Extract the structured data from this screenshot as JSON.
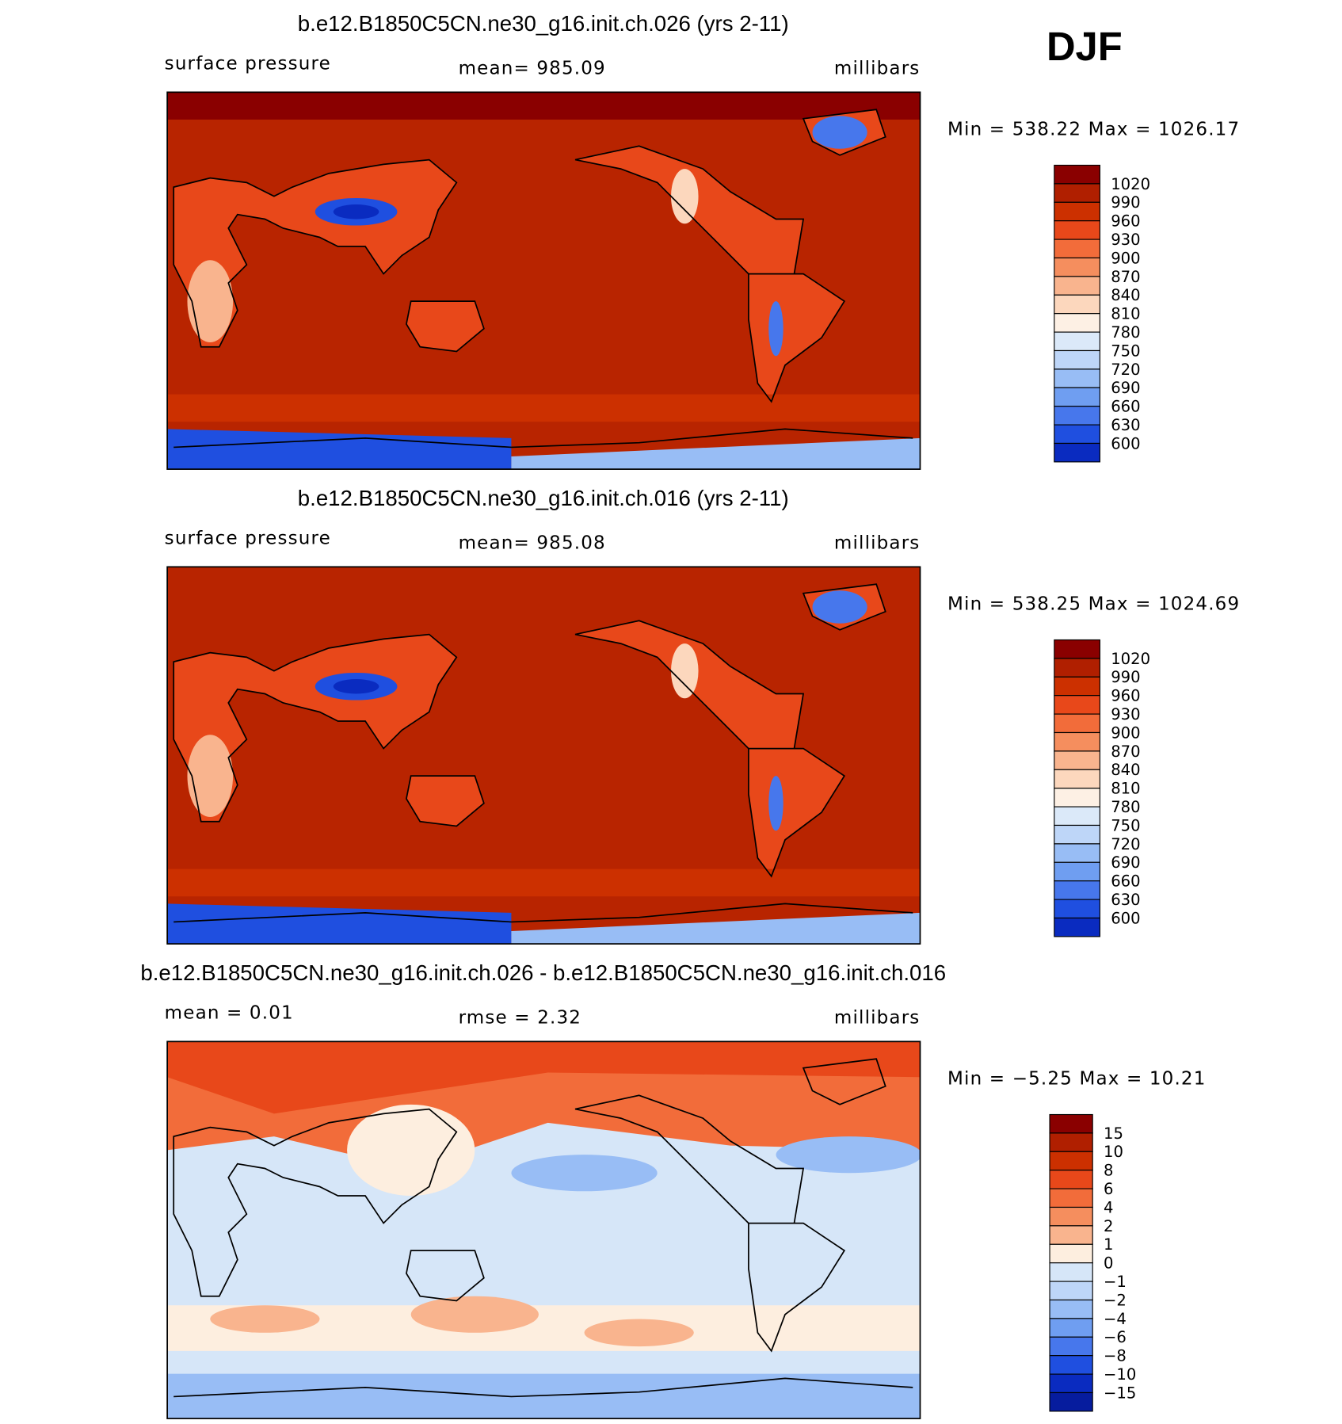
{
  "season": "DJF",
  "panels": [
    {
      "title": "b.e12.B1850C5CN.ne30_g16.init.ch.026 (yrs 2-11)",
      "left_label": "surface pressure",
      "center_label": "mean=  985.09",
      "right_label": "millibars",
      "min_max": "Min = 538.22 Max = 1026.17",
      "colorbar": {
        "labels": [
          "1020",
          "990",
          "960",
          "930",
          "900",
          "870",
          "840",
          "810",
          "780",
          "750",
          "720",
          "690",
          "660",
          "630",
          "600"
        ],
        "colors": [
          "#8a0000",
          "#b01f00",
          "#cc3000",
          "#e8481a",
          "#f26c3a",
          "#f58e5e",
          "#f9b48e",
          "#fcd7bd",
          "#fdf0e4",
          "#dbe9f9",
          "#bed6f8",
          "#98bdf5",
          "#6f9ef1",
          "#4777ec",
          "#1f4fe0",
          "#0a2bc0"
        ]
      }
    },
    {
      "title": "b.e12.B1850C5CN.ne30_g16.init.ch.016 (yrs 2-11)",
      "left_label": "surface pressure",
      "center_label": "mean=  985.08",
      "right_label": "millibars",
      "min_max": "Min = 538.25 Max = 1024.69",
      "colorbar": {
        "labels": [
          "1020",
          "990",
          "960",
          "930",
          "900",
          "870",
          "840",
          "810",
          "780",
          "750",
          "720",
          "690",
          "660",
          "630",
          "600"
        ],
        "colors": [
          "#8a0000",
          "#b01f00",
          "#cc3000",
          "#e8481a",
          "#f26c3a",
          "#f58e5e",
          "#f9b48e",
          "#fcd7bd",
          "#fdf0e4",
          "#dbe9f9",
          "#bed6f8",
          "#98bdf5",
          "#6f9ef1",
          "#4777ec",
          "#1f4fe0",
          "#0a2bc0"
        ]
      }
    },
    {
      "title": "b.e12.B1850C5CN.ne30_g16.init.ch.026 - b.e12.B1850C5CN.ne30_g16.init.ch.016",
      "left_label": "mean =    0.01",
      "center_label": "rmse =    2.32",
      "right_label": "millibars",
      "min_max": "Min =   −5.25 Max =   10.21",
      "colorbar": {
        "labels": [
          "15",
          "10",
          "8",
          "6",
          "4",
          "2",
          "1",
          "0",
          "−1",
          "−2",
          "−4",
          "−6",
          "−8",
          "−10",
          "−15"
        ],
        "colors": [
          "#8a0000",
          "#b01f00",
          "#cc3000",
          "#e8481a",
          "#f26c3a",
          "#f58e5e",
          "#f9b48e",
          "#fdeedf",
          "#d6e6f8",
          "#bed6f8",
          "#98bdf5",
          "#6f9ef1",
          "#4777ec",
          "#1f4fe0",
          "#0a2bc0",
          "#061c9e"
        ]
      }
    }
  ]
}
